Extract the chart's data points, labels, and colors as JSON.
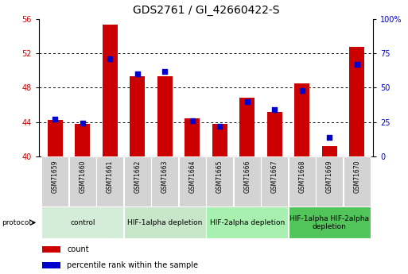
{
  "title": "GDS2761 / GI_42660422-S",
  "samples": [
    "GSM71659",
    "GSM71660",
    "GSM71661",
    "GSM71662",
    "GSM71663",
    "GSM71664",
    "GSM71665",
    "GSM71666",
    "GSM71667",
    "GSM71668",
    "GSM71669",
    "GSM71670"
  ],
  "counts": [
    44.2,
    43.8,
    55.4,
    49.3,
    49.3,
    44.4,
    43.8,
    46.8,
    45.2,
    48.5,
    41.2,
    52.8
  ],
  "percentiles": [
    27,
    24,
    71,
    60,
    62,
    26,
    22,
    40,
    34,
    48,
    14,
    67
  ],
  "ylim_left": [
    40,
    56
  ],
  "ylim_right": [
    0,
    100
  ],
  "yticks_left": [
    40,
    44,
    48,
    52,
    56
  ],
  "yticks_right": [
    0,
    25,
    50,
    75,
    100
  ],
  "ytick_labels_right": [
    "0",
    "25",
    "50",
    "75",
    "100%"
  ],
  "bar_color": "#cc0000",
  "dot_color": "#0000cc",
  "groups": [
    {
      "label": "control",
      "start": 0,
      "end": 3,
      "color": "#d4edd9"
    },
    {
      "label": "HIF-1alpha depletion",
      "start": 3,
      "end": 6,
      "color": "#c8e6c9"
    },
    {
      "label": "HIF-2alpha depletion",
      "start": 6,
      "end": 9,
      "color": "#a8f0b0"
    },
    {
      "label": "HIF-1alpha HIF-2alpha\ndepletion",
      "start": 9,
      "end": 12,
      "color": "#52c55a"
    }
  ],
  "protocol_label": "protocol",
  "legend_count_label": "count",
  "legend_percentile_label": "percentile rank within the sample",
  "bar_width": 0.55,
  "title_fontsize": 10,
  "tick_fontsize": 7,
  "sample_fontsize": 5.5,
  "group_fontsize": 6.5,
  "legend_fontsize": 7
}
